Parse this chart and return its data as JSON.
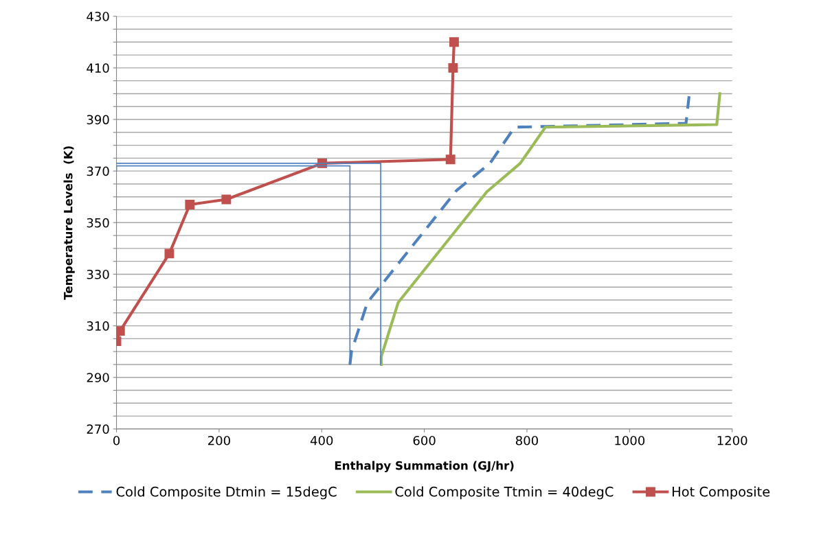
{
  "chart_data": {
    "type": "line",
    "xlabel": "Enthalpy Summation (GJ/hr)",
    "ylabel": "Temperature Levels  (K)",
    "xlim": [
      0,
      1200
    ],
    "xticks": [
      0,
      200,
      400,
      600,
      800,
      1000,
      1200
    ],
    "ylim": [
      270,
      430
    ],
    "yticks": [
      270,
      {
        "value": 275,
        "label": null
      },
      {
        "value": 280,
        "label": null
      },
      {
        "value": 285,
        "label": null
      },
      290,
      {
        "value": 295,
        "label": null
      },
      {
        "value": 300,
        "label": null
      },
      {
        "value": 305,
        "label": null
      },
      310,
      {
        "value": 315,
        "label": null
      },
      {
        "value": 320,
        "label": null
      },
      {
        "value": 325,
        "label": null
      },
      330,
      {
        "value": 335,
        "label": null
      },
      {
        "value": 340,
        "label": null
      },
      {
        "value": 345,
        "label": null
      },
      350,
      {
        "value": 355,
        "label": null
      },
      {
        "value": 360,
        "label": null
      },
      {
        "value": 365,
        "label": null
      },
      370,
      {
        "value": 375,
        "label": null
      },
      {
        "value": 380,
        "label": null
      },
      {
        "value": 385,
        "label": null
      },
      390,
      {
        "value": 395,
        "label": null
      },
      {
        "value": 400,
        "label": null
      },
      {
        "value": 405,
        "label": null
      },
      410,
      {
        "value": 415,
        "label": null
      },
      {
        "value": 420,
        "label": null
      },
      {
        "value": 425,
        "label": null
      },
      430
    ],
    "grid": "y",
    "legend": "bottom",
    "series": [
      {
        "name": "Cold Composite Dtmin = 15degC",
        "color": "#4f81bd",
        "line_style": "dashed",
        "marker": "none",
        "x": [
          455,
          458,
          489,
          663,
          728,
          776,
          1110,
          1116
        ],
        "values": [
          295,
          300,
          319,
          362.5,
          373,
          387,
          388.5,
          399
        ]
      },
      {
        "name": "Cold Composite Ttmin = 40degC",
        "color": "#9bbb59",
        "line_style": "solid",
        "marker": "none",
        "x": [
          516,
          516,
          549,
          722,
          787,
          836,
          1170,
          1176
        ],
        "values": [
          295,
          298,
          319,
          362,
          373,
          387,
          388,
          400
        ]
      },
      {
        "name": "Hot Composite",
        "color": "#c0504d",
        "line_style": "solid",
        "marker": "square",
        "x": [
          0,
          7,
          103,
          143,
          214,
          401,
          651,
          656,
          658
        ],
        "values": [
          304,
          308,
          338,
          357,
          359,
          373,
          374.5,
          410,
          420
        ]
      },
      {
        "color": "#4f81bd",
        "line_style": "solid",
        "marker": "none",
        "x": [
          0,
          0,
          455,
          455
        ],
        "values": [
          370,
          372,
          372,
          295
        ]
      },
      {
        "color": "#4f81bd",
        "line_style": "solid",
        "marker": "none",
        "x": [
          0,
          515,
          515
        ],
        "values": [
          373,
          373,
          295
        ]
      }
    ]
  }
}
